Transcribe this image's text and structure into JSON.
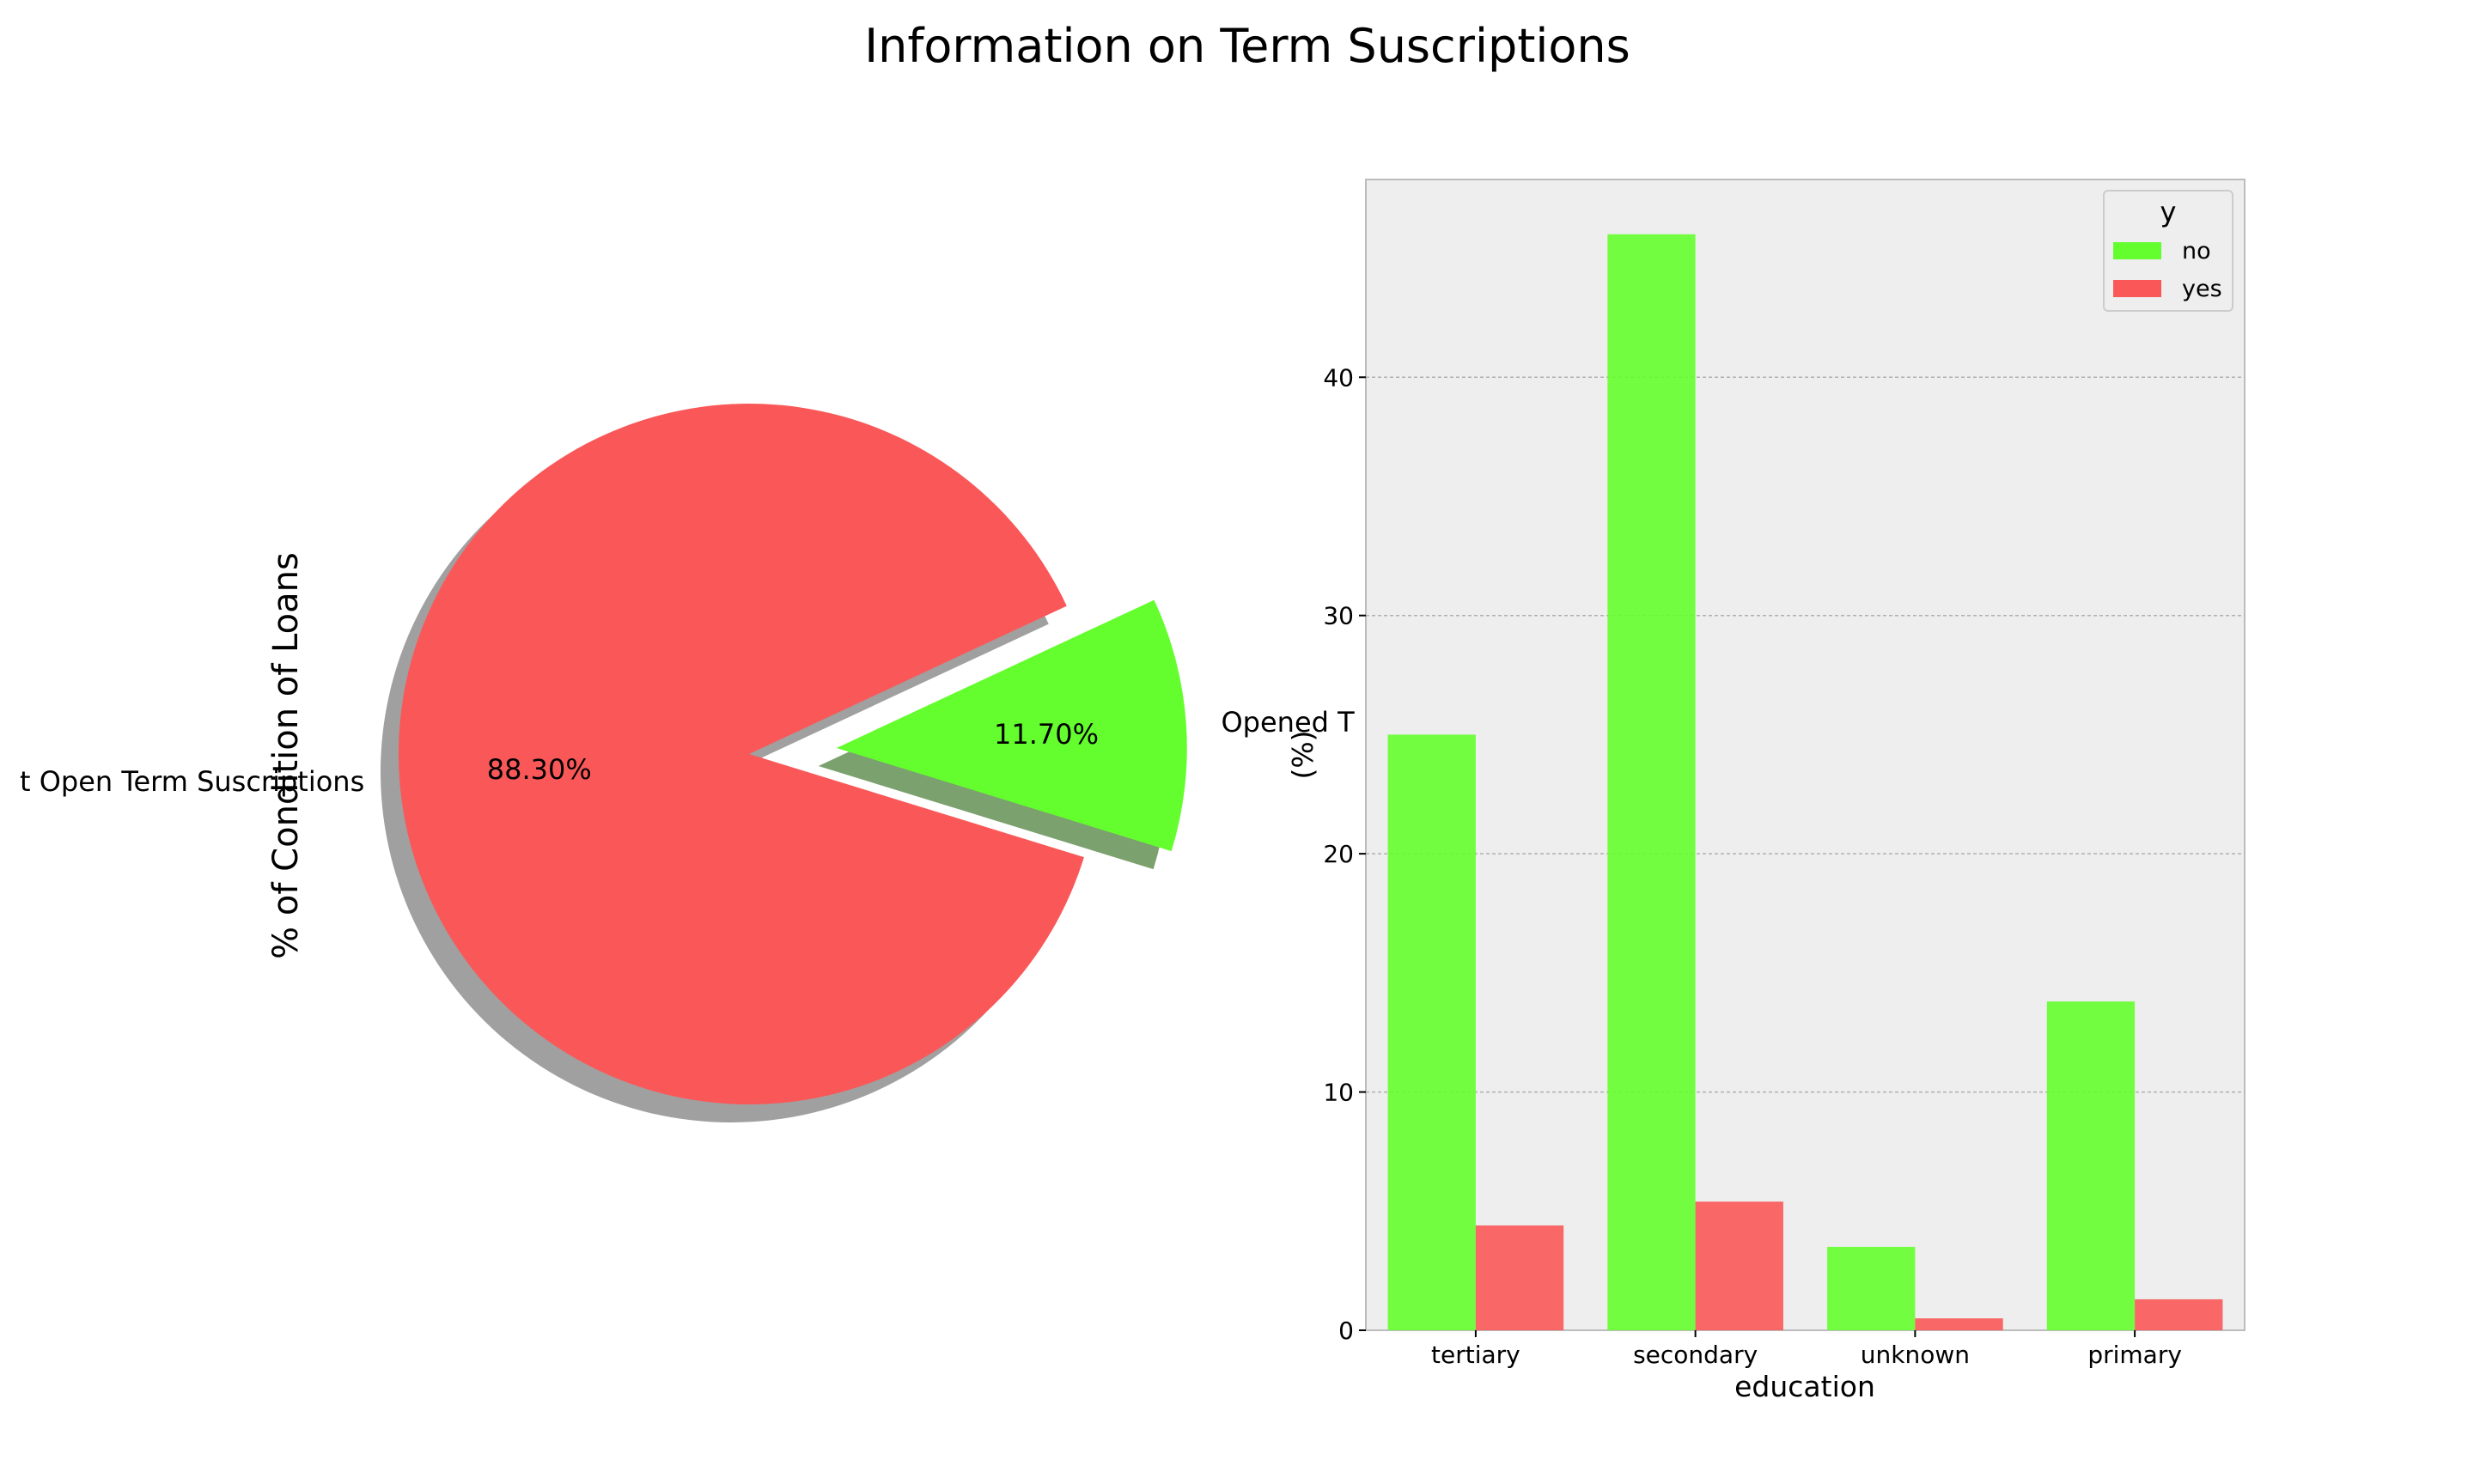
{
  "figure": {
    "title": "Information on Term Suscriptions"
  },
  "chart_data": [
    {
      "type": "pie",
      "ylabel": "% of Condition of Loans",
      "labels": [
        "Did not Open Term Suscriptions",
        "Opened Term Suscriptions"
      ],
      "visible_labels": [
        "t Open Term Suscriptions",
        "Opened T"
      ],
      "values": [
        88.3,
        11.7
      ],
      "pct_labels": [
        "88.30%",
        "11.70%"
      ],
      "explode": [
        0,
        0.25
      ],
      "shadow": true,
      "start_angle_deg": 25,
      "colors": [
        "#fa5858",
        "#64fe2e"
      ]
    },
    {
      "type": "bar",
      "xlabel": "education",
      "ylabel": "(%)",
      "categories": [
        "tertiary",
        "secondary",
        "unknown",
        "primary"
      ],
      "series": [
        {
          "name": "no",
          "values": [
            25.0,
            46.0,
            3.5,
            13.8
          ],
          "color": "#64fe2e"
        },
        {
          "name": "yes",
          "values": [
            4.4,
            5.4,
            0.5,
            1.3
          ],
          "color": "#fa5858"
        }
      ],
      "ylim": [
        0,
        48.3
      ],
      "yticks": [
        0,
        10,
        20,
        30,
        40
      ],
      "ytick_labels": [
        "0",
        "10",
        "20",
        "30",
        "40"
      ],
      "grid": true,
      "background": "#eeeeee",
      "legend": {
        "title": "y",
        "placement": "top-right",
        "entries": [
          "no",
          "yes"
        ]
      }
    }
  ]
}
